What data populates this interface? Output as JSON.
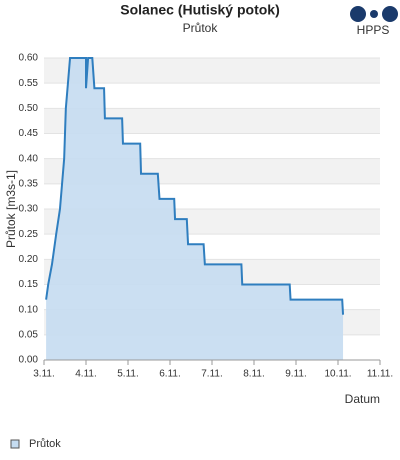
{
  "chart_data": {
    "type": "area",
    "title": "Solanec (Hutiský potok)",
    "subtitle": "Průtok",
    "logo_text": "HPPS",
    "y_label": "Průtok [m3s-1]",
    "x_label": "Datum",
    "series": [
      {
        "name": "Průtok",
        "color": "#2f7ebf",
        "fill": "#c5dcf1",
        "x": [
          3.05,
          3.1,
          3.19,
          3.29,
          3.38,
          3.43,
          3.48,
          3.52,
          3.57,
          3.62,
          4.0,
          4.0,
          4.05,
          4.15,
          4.2,
          4.43,
          4.45,
          4.86,
          4.88,
          5.29,
          5.31,
          5.71,
          5.75,
          6.1,
          6.12,
          6.4,
          6.43,
          6.8,
          6.83,
          7.7,
          7.72,
          8.85,
          8.87,
          10.1,
          10.12
        ],
        "values": [
          0.12,
          0.15,
          0.19,
          0.25,
          0.3,
          0.35,
          0.4,
          0.5,
          0.55,
          0.6,
          0.6,
          0.54,
          0.6,
          0.6,
          0.54,
          0.54,
          0.48,
          0.48,
          0.43,
          0.43,
          0.37,
          0.37,
          0.32,
          0.32,
          0.28,
          0.28,
          0.23,
          0.23,
          0.19,
          0.19,
          0.15,
          0.15,
          0.12,
          0.12,
          0.09
        ]
      }
    ],
    "xlim": [
      3,
      11
    ],
    "xticks": [
      {
        "value": 3,
        "label": "3.11."
      },
      {
        "value": 4,
        "label": "4.11."
      },
      {
        "value": 5,
        "label": "5.11."
      },
      {
        "value": 6,
        "label": "6.11."
      },
      {
        "value": 7,
        "label": "7.11."
      },
      {
        "value": 8,
        "label": "8.11."
      },
      {
        "value": 9,
        "label": "9.11."
      },
      {
        "value": 10,
        "label": "10.11."
      },
      {
        "value": 11,
        "label": "11.11."
      }
    ],
    "ylim": [
      0,
      0.6
    ],
    "yticks": [
      {
        "value": 0,
        "label": "0.00"
      },
      {
        "value": 0.05,
        "label": "0.05"
      },
      {
        "value": 0.1,
        "label": "0.10"
      },
      {
        "value": 0.15,
        "label": "0.15"
      },
      {
        "value": 0.2,
        "label": "0.20"
      },
      {
        "value": 0.25,
        "label": "0.25"
      },
      {
        "value": 0.3,
        "label": "0.30"
      },
      {
        "value": 0.35,
        "label": "0.35"
      },
      {
        "value": 0.4,
        "label": "0.40"
      },
      {
        "value": 0.45,
        "label": "0.45"
      },
      {
        "value": 0.5,
        "label": "0.50"
      },
      {
        "value": 0.55,
        "label": "0.55"
      },
      {
        "value": 0.6,
        "label": "0.60"
      }
    ],
    "grid_bands": true
  }
}
